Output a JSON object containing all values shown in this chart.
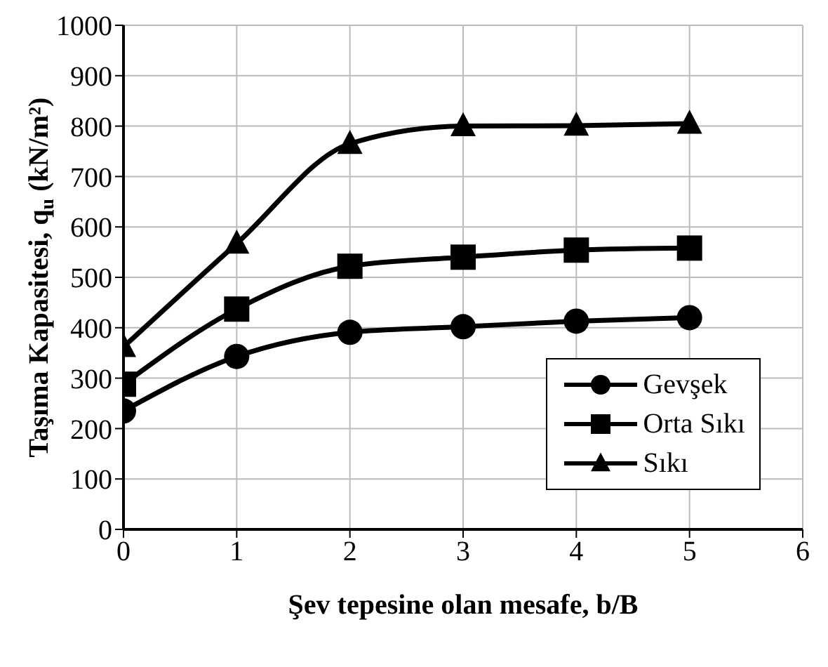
{
  "chart_data": {
    "type": "line",
    "xlabel": "Şev tepesine olan mesafe, b/B",
    "ylabel": "Taşıma Kapasitesi, q$_{u}$ (kN/m²)",
    "x": [
      0,
      1,
      2,
      3,
      4,
      5
    ],
    "series": [
      {
        "name": "Gevşek",
        "color": "#000000",
        "marker": "circle",
        "values": [
          235,
          343,
          391,
          402,
          413,
          420
        ]
      },
      {
        "name": "Orta Sıkı",
        "color": "#000000",
        "marker": "square",
        "values": [
          288,
          437,
          522,
          540,
          554,
          558
        ]
      },
      {
        "name": "Sıkı",
        "color": "#000000",
        "marker": "triangle",
        "values": [
          362,
          567,
          765,
          800,
          801,
          805
        ]
      }
    ],
    "xlim": [
      0,
      6
    ],
    "xticks": [
      0,
      1,
      2,
      3,
      4,
      5,
      6
    ],
    "ylim": [
      0,
      1000
    ],
    "yticks": [
      0,
      100,
      200,
      300,
      400,
      500,
      600,
      700,
      800,
      900,
      1000
    ],
    "grid": true,
    "legend": "bottom right",
    "line_style": "solid"
  }
}
